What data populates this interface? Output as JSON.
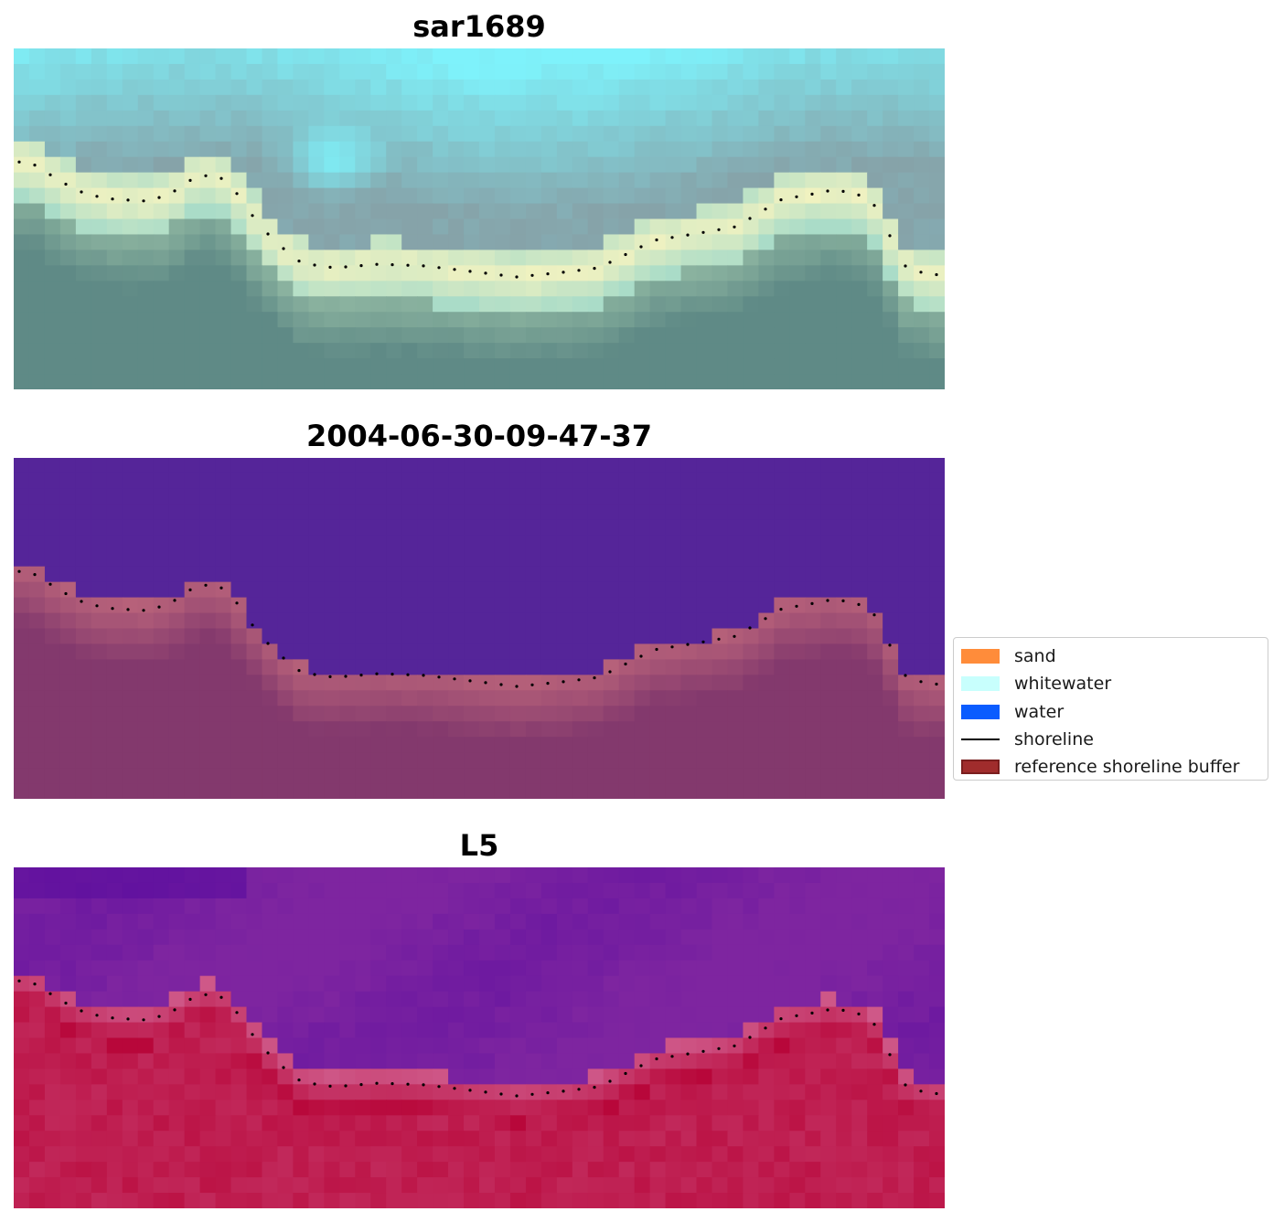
{
  "panels": [
    {
      "title": "sar1689",
      "style": "rgb"
    },
    {
      "title": "2004-06-30-09-47-37",
      "style": "classified"
    },
    {
      "title": "L5",
      "style": "index"
    }
  ],
  "legend": {
    "items": [
      {
        "label": "sand",
        "color": "#ff8c3a",
        "kind": "patch"
      },
      {
        "label": "whitewater",
        "color": "#c8fffd",
        "kind": "patch"
      },
      {
        "label": "water",
        "color": "#0a5cff",
        "kind": "patch"
      },
      {
        "label": "shoreline",
        "color": "#000000",
        "kind": "line"
      },
      {
        "label": "reference shoreline buffer",
        "color": "#a02c2c",
        "edge": "#7a1e1e",
        "kind": "patch"
      }
    ]
  },
  "colors": {
    "sky": "#7ef2fb",
    "grey_water": "#86a3a9",
    "pale_beach": "#f4f3c0",
    "dark_land": "#5f8a86",
    "class_water": "#552599",
    "class_land": "#83396d",
    "class_land_light": "#b8627a",
    "index_water": "#7e25a0",
    "index_water_dark": "#590c9f",
    "index_land": "#b8073a",
    "index_land_light": "#cf5a8a"
  }
}
